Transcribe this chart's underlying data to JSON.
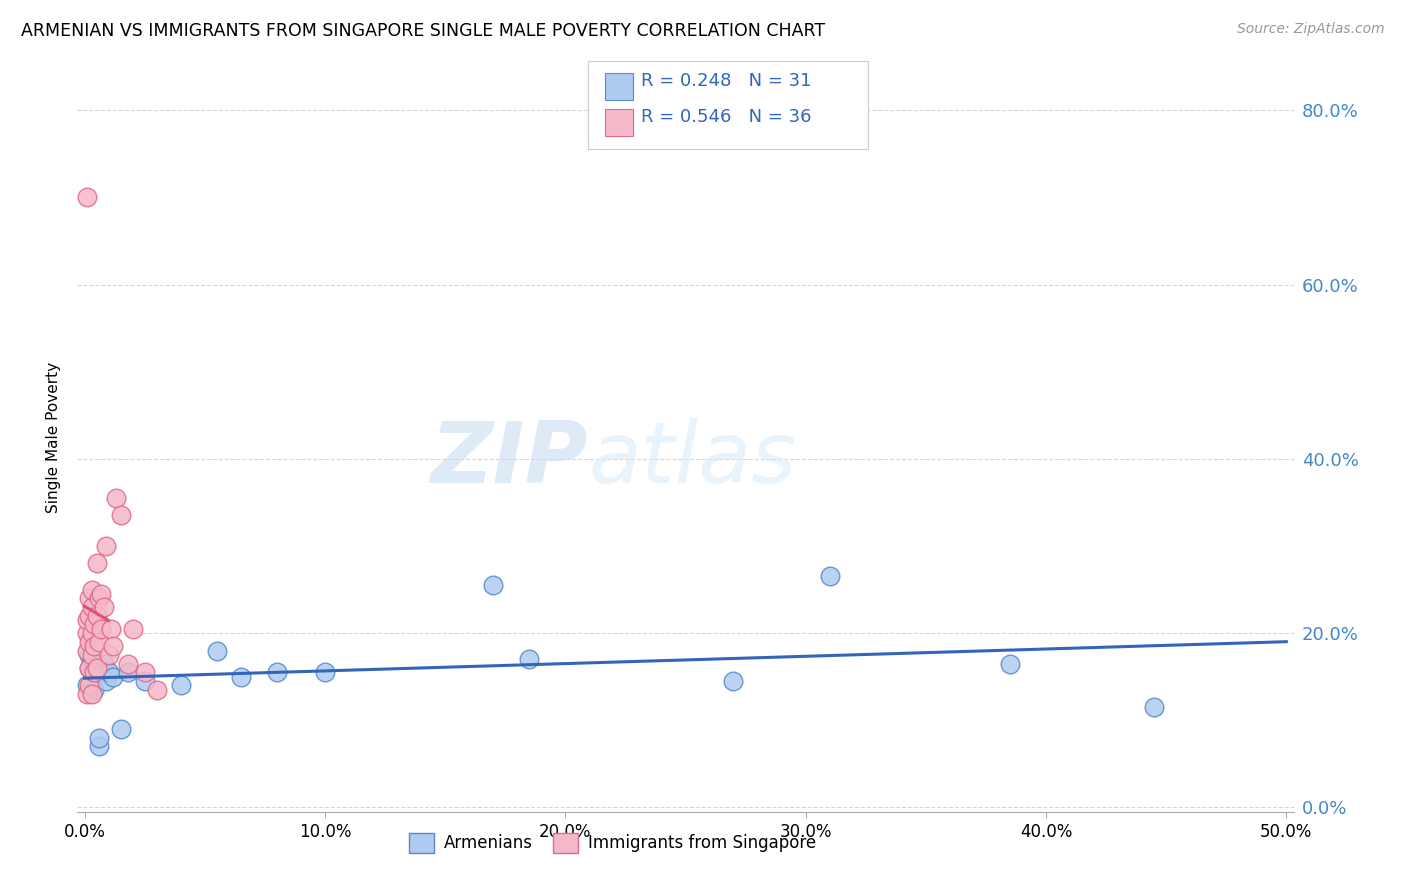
{
  "title": "ARMENIAN VS IMMIGRANTS FROM SINGAPORE SINGLE MALE POVERTY CORRELATION CHART",
  "source": "Source: ZipAtlas.com",
  "ylabel_label": "Single Male Poverty",
  "xlim": [
    -0.003,
    0.503
  ],
  "ylim": [
    -0.005,
    0.855
  ],
  "xtick_positions": [
    0.0,
    0.1,
    0.2,
    0.3,
    0.4,
    0.5
  ],
  "xtick_labels": [
    "0.0%",
    "10.0%",
    "20.0%",
    "30.0%",
    "40.0%",
    "50.0%"
  ],
  "ytick_vals_right": [
    0.0,
    0.2,
    0.4,
    0.6,
    0.8
  ],
  "ytick_labels_right": [
    "0.0%",
    "20.0%",
    "40.0%",
    "60.0%",
    "80.0%"
  ],
  "armenian_color": "#aeccf0",
  "armenian_edge_color": "#5588cc",
  "singapore_color": "#f5b8c8",
  "singapore_edge_color": "#e06888",
  "trendline_armenian_color": "#3366bb",
  "trendline_singapore_color": "#e05070",
  "R_armenian": 0.248,
  "N_armenian": 31,
  "R_singapore": 0.546,
  "N_singapore": 36,
  "legend_label_armenian": "Armenians",
  "legend_label_singapore": "Immigrants from Singapore",
  "watermark_zip": "ZIP",
  "watermark_atlas": "atlas",
  "armenian_x": [
    0.001,
    0.002,
    0.002,
    0.003,
    0.003,
    0.004,
    0.004,
    0.004,
    0.005,
    0.005,
    0.006,
    0.006,
    0.007,
    0.008,
    0.009,
    0.01,
    0.012,
    0.015,
    0.018,
    0.025,
    0.04,
    0.055,
    0.065,
    0.08,
    0.1,
    0.17,
    0.185,
    0.27,
    0.31,
    0.385,
    0.445
  ],
  "armenian_y": [
    0.14,
    0.16,
    0.175,
    0.155,
    0.17,
    0.135,
    0.155,
    0.17,
    0.155,
    0.165,
    0.07,
    0.08,
    0.155,
    0.165,
    0.145,
    0.155,
    0.15,
    0.09,
    0.155,
    0.145,
    0.14,
    0.18,
    0.15,
    0.155,
    0.155,
    0.255,
    0.17,
    0.145,
    0.265,
    0.165,
    0.115
  ],
  "singapore_x": [
    0.001,
    0.001,
    0.001,
    0.001,
    0.002,
    0.002,
    0.002,
    0.002,
    0.002,
    0.003,
    0.003,
    0.003,
    0.003,
    0.003,
    0.004,
    0.004,
    0.004,
    0.005,
    0.005,
    0.005,
    0.006,
    0.006,
    0.007,
    0.007,
    0.008,
    0.009,
    0.01,
    0.011,
    0.012,
    0.013,
    0.015,
    0.018,
    0.02,
    0.025,
    0.03,
    0.001
  ],
  "singapore_y": [
    0.2,
    0.215,
    0.18,
    0.13,
    0.24,
    0.16,
    0.19,
    0.22,
    0.14,
    0.23,
    0.25,
    0.175,
    0.2,
    0.13,
    0.21,
    0.185,
    0.155,
    0.28,
    0.16,
    0.22,
    0.19,
    0.24,
    0.245,
    0.205,
    0.23,
    0.3,
    0.175,
    0.205,
    0.185,
    0.355,
    0.335,
    0.165,
    0.205,
    0.155,
    0.135,
    0.7
  ]
}
